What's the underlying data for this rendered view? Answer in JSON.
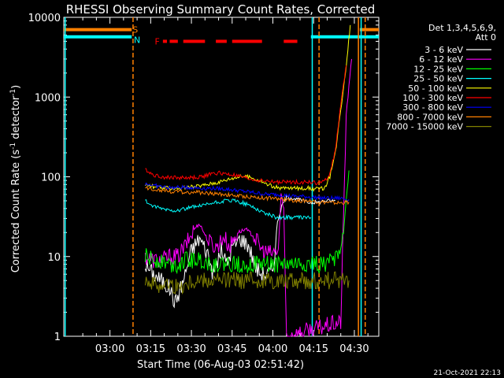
{
  "chart_data": {
    "type": "line",
    "title": "RHESSI Observing Summary Count Rates, Corrected",
    "ylabel_main": "Corrected Count Rate (s",
    "ylabel_sup": "-1",
    "ylabel_mid": " detector",
    "ylabel_sup2": "-1",
    "ylabel_end": ")",
    "xlabel": "Start Time (06-Aug-03 02:51:42)",
    "footer": "21-Oct-2021 22:13",
    "y_log": true,
    "ylim": [
      1,
      10000
    ],
    "xlim_minutes": [
      -17,
      99
    ],
    "y_ticks": [
      {
        "v": 1,
        "label": "1"
      },
      {
        "v": 10,
        "label": "10"
      },
      {
        "v": 100,
        "label": "100"
      },
      {
        "v": 1000,
        "label": "1000"
      },
      {
        "v": 10000,
        "label": "10000"
      }
    ],
    "x_ticks": [
      {
        "m": 0,
        "label": "03:00"
      },
      {
        "m": 15,
        "label": "03:15"
      },
      {
        "m": 30,
        "label": "03:30"
      },
      {
        "m": 45,
        "label": "03:45"
      },
      {
        "m": 60,
        "label": "04:00"
      },
      {
        "m": 75,
        "label": "04:15"
      },
      {
        "m": 90,
        "label": "04:30"
      }
    ],
    "legend": {
      "header1": "Det 1,3,4,5,6,9,",
      "header2": "Att 0",
      "placement": "right"
    },
    "annotations": {
      "S": "S",
      "N": "N",
      "F": "F"
    },
    "series": [
      {
        "name": "3 - 6 keV",
        "color": "#ffffff",
        "points": [
          [
            13,
            8
          ],
          [
            16,
            6
          ],
          [
            19,
            5
          ],
          [
            22,
            4
          ],
          [
            24,
            2.6
          ],
          [
            27,
            5
          ],
          [
            30,
            12
          ],
          [
            33,
            17
          ],
          [
            36,
            11
          ],
          [
            38,
            6
          ],
          [
            41,
            12
          ],
          [
            43,
            8
          ],
          [
            45,
            13
          ],
          [
            48,
            17
          ],
          [
            51,
            14
          ],
          [
            54,
            7
          ],
          [
            56,
            6
          ],
          [
            58,
            6
          ],
          [
            60,
            7
          ],
          [
            62,
            30
          ],
          [
            63.5,
            45
          ],
          [
            65,
            55
          ],
          [
            67,
            55
          ],
          [
            69,
            52
          ],
          [
            71,
            50
          ],
          [
            73,
            48
          ],
          [
            75,
            48
          ],
          [
            77,
            48
          ],
          [
            79,
            50
          ],
          [
            81,
            50
          ],
          [
            83,
            50
          ]
        ]
      },
      {
        "name": "6 - 12 keV",
        "color": "#ff00ff",
        "points": [
          [
            13,
            10
          ],
          [
            16,
            9
          ],
          [
            19,
            9
          ],
          [
            22,
            10
          ],
          [
            25,
            10
          ],
          [
            28,
            14
          ],
          [
            31,
            22
          ],
          [
            33,
            26
          ],
          [
            36,
            16
          ],
          [
            39,
            13
          ],
          [
            42,
            18
          ],
          [
            44,
            13
          ],
          [
            47,
            20
          ],
          [
            50,
            22
          ],
          [
            53,
            18
          ],
          [
            56,
            12
          ],
          [
            58,
            11
          ],
          [
            60,
            11
          ],
          [
            62,
            12
          ],
          [
            63,
            60
          ],
          [
            64,
            40
          ],
          [
            65,
            1
          ],
          [
            85,
            1.5
          ],
          [
            87,
            600
          ],
          [
            89,
            3000
          ]
        ]
      },
      {
        "name": "12 - 25 keV",
        "color": "#00ff00",
        "points": [
          [
            13,
            10
          ],
          [
            16,
            9
          ],
          [
            19,
            9
          ],
          [
            22,
            8
          ],
          [
            25,
            8
          ],
          [
            28,
            9
          ],
          [
            31,
            9
          ],
          [
            34,
            9
          ],
          [
            37,
            8
          ],
          [
            40,
            8
          ],
          [
            43,
            8
          ],
          [
            46,
            8
          ],
          [
            49,
            8
          ],
          [
            52,
            8
          ],
          [
            55,
            8
          ],
          [
            58,
            8
          ],
          [
            61,
            8
          ],
          [
            64,
            8
          ],
          [
            67,
            8
          ],
          [
            70,
            8
          ],
          [
            73,
            8
          ],
          [
            76,
            8
          ],
          [
            79,
            8
          ],
          [
            82,
            9
          ],
          [
            84,
            11
          ],
          [
            86,
            20
          ],
          [
            87,
            50
          ],
          [
            88,
            120
          ]
        ]
      },
      {
        "name": "25 - 50 keV",
        "color": "#00ffff",
        "points": [
          [
            13,
            50
          ],
          [
            16,
            42
          ],
          [
            19,
            40
          ],
          [
            22,
            38
          ],
          [
            25,
            38
          ],
          [
            28,
            40
          ],
          [
            31,
            42
          ],
          [
            34,
            43
          ],
          [
            37,
            46
          ],
          [
            40,
            48
          ],
          [
            43,
            50
          ],
          [
            46,
            50
          ],
          [
            49,
            47
          ],
          [
            52,
            43
          ],
          [
            55,
            38
          ],
          [
            58,
            34
          ],
          [
            61,
            31
          ],
          [
            64,
            31
          ],
          [
            67,
            31
          ],
          [
            70,
            31
          ],
          [
            73,
            31
          ],
          [
            74,
            31
          ]
        ]
      },
      {
        "name": "50 - 100 keV",
        "color": "#ffff00",
        "points": [
          [
            13,
            80
          ],
          [
            16,
            75
          ],
          [
            19,
            72
          ],
          [
            22,
            72
          ],
          [
            25,
            72
          ],
          [
            28,
            73
          ],
          [
            31,
            75
          ],
          [
            34,
            78
          ],
          [
            37,
            82
          ],
          [
            40,
            86
          ],
          [
            43,
            92
          ],
          [
            46,
            98
          ],
          [
            49,
            102
          ],
          [
            52,
            98
          ],
          [
            55,
            90
          ],
          [
            58,
            80
          ],
          [
            61,
            74
          ],
          [
            64,
            72
          ],
          [
            67,
            72
          ],
          [
            70,
            72
          ],
          [
            73,
            72
          ],
          [
            76,
            70
          ],
          [
            79,
            72
          ],
          [
            81,
            100
          ],
          [
            83,
            200
          ],
          [
            85,
            700
          ],
          [
            87,
            2500
          ],
          [
            88.5,
            8000
          ]
        ]
      },
      {
        "name": "100 - 300 keV",
        "color": "#ff0000",
        "points": [
          [
            13,
            125
          ],
          [
            16,
            105
          ],
          [
            19,
            100
          ],
          [
            22,
            98
          ],
          [
            25,
            98
          ],
          [
            28,
            97
          ],
          [
            31,
            98
          ],
          [
            34,
            100
          ],
          [
            37,
            108
          ],
          [
            40,
            112
          ],
          [
            43,
            108
          ],
          [
            46,
            104
          ],
          [
            49,
            98
          ],
          [
            52,
            93
          ],
          [
            55,
            90
          ],
          [
            58,
            88
          ],
          [
            61,
            86
          ],
          [
            64,
            86
          ],
          [
            67,
            86
          ],
          [
            70,
            86
          ],
          [
            73,
            86
          ],
          [
            76,
            84
          ],
          [
            79,
            87
          ],
          [
            81,
            110
          ],
          [
            83,
            220
          ],
          [
            85,
            800
          ],
          [
            87,
            2500
          ]
        ]
      },
      {
        "name": "300 - 800 keV",
        "color": "#0000ff",
        "points": [
          [
            13,
            82
          ],
          [
            16,
            78
          ],
          [
            19,
            75
          ],
          [
            22,
            73
          ],
          [
            25,
            73
          ],
          [
            28,
            74
          ],
          [
            31,
            73
          ],
          [
            34,
            72
          ],
          [
            37,
            72
          ],
          [
            40,
            71
          ],
          [
            43,
            70
          ],
          [
            46,
            68
          ],
          [
            49,
            66
          ],
          [
            52,
            64
          ],
          [
            55,
            62
          ],
          [
            58,
            60
          ],
          [
            61,
            60
          ],
          [
            64,
            59
          ],
          [
            67,
            57
          ],
          [
            70,
            57
          ],
          [
            73,
            56
          ],
          [
            76,
            55
          ],
          [
            79,
            54
          ],
          [
            82,
            54
          ],
          [
            85,
            54
          ],
          [
            88,
            52
          ]
        ]
      },
      {
        "name": "800 - 7000 keV",
        "color": "#ff8000",
        "points": [
          [
            13,
            72
          ],
          [
            16,
            70
          ],
          [
            19,
            68
          ],
          [
            22,
            66
          ],
          [
            25,
            65
          ],
          [
            28,
            64
          ],
          [
            31,
            64
          ],
          [
            34,
            63
          ],
          [
            37,
            62
          ],
          [
            40,
            61
          ],
          [
            43,
            60
          ],
          [
            46,
            58
          ],
          [
            49,
            57
          ],
          [
            52,
            56
          ],
          [
            55,
            55
          ],
          [
            58,
            54
          ],
          [
            61,
            53
          ],
          [
            64,
            52
          ],
          [
            67,
            51
          ],
          [
            70,
            50
          ],
          [
            73,
            50
          ],
          [
            76,
            49
          ],
          [
            79,
            48
          ],
          [
            82,
            47
          ],
          [
            85,
            47
          ],
          [
            88,
            48
          ]
        ]
      },
      {
        "name": "7000 - 15000 keV",
        "color": "#808000",
        "points": [
          [
            13,
            5.5
          ],
          [
            16,
            4.5
          ],
          [
            19,
            4.5
          ],
          [
            22,
            4.5
          ],
          [
            25,
            4
          ],
          [
            28,
            4.5
          ],
          [
            31,
            5
          ],
          [
            34,
            5
          ],
          [
            37,
            5
          ],
          [
            40,
            5
          ],
          [
            43,
            5
          ],
          [
            46,
            5
          ],
          [
            49,
            5
          ],
          [
            52,
            5
          ],
          [
            55,
            5
          ],
          [
            58,
            5
          ],
          [
            61,
            5
          ],
          [
            64,
            5
          ],
          [
            67,
            5
          ],
          [
            70,
            5
          ],
          [
            73,
            5
          ],
          [
            76,
            5
          ],
          [
            79,
            5
          ],
          [
            82,
            5
          ],
          [
            85,
            5
          ],
          [
            88,
            5
          ]
        ]
      }
    ],
    "state_bars": [
      {
        "color": "#ff8000",
        "y": 7000,
        "ranges": [
          [
            -17,
            8
          ],
          [
            92,
            99
          ]
        ],
        "label": "S"
      },
      {
        "color": "#00ffff",
        "y": 5700,
        "ranges": [
          [
            -17,
            8
          ],
          [
            74,
            99
          ]
        ],
        "label": "N"
      }
    ],
    "flare_segments": {
      "color": "#ff0000",
      "y": 5000,
      "ranges": [
        [
          19.5,
          21
        ],
        [
          22,
          25
        ],
        [
          27,
          35
        ],
        [
          39,
          43
        ],
        [
          45,
          56
        ],
        [
          64,
          69
        ]
      ]
    },
    "vlines": [
      {
        "m": -16.5,
        "color": "#00ffff",
        "dashed": false
      },
      {
        "m": 8.5,
        "color": "#ff8000",
        "dashed": true
      },
      {
        "m": 74.5,
        "color": "#00ffff",
        "dashed": false
      },
      {
        "m": 77,
        "color": "#ff8000",
        "dashed": true
      },
      {
        "m": 91.5,
        "color": "#ff8000",
        "dashed": false
      },
      {
        "m": 92.5,
        "color": "#00ffff",
        "dashed": false
      },
      {
        "m": 94,
        "color": "#ff8000",
        "dashed": true
      }
    ]
  }
}
